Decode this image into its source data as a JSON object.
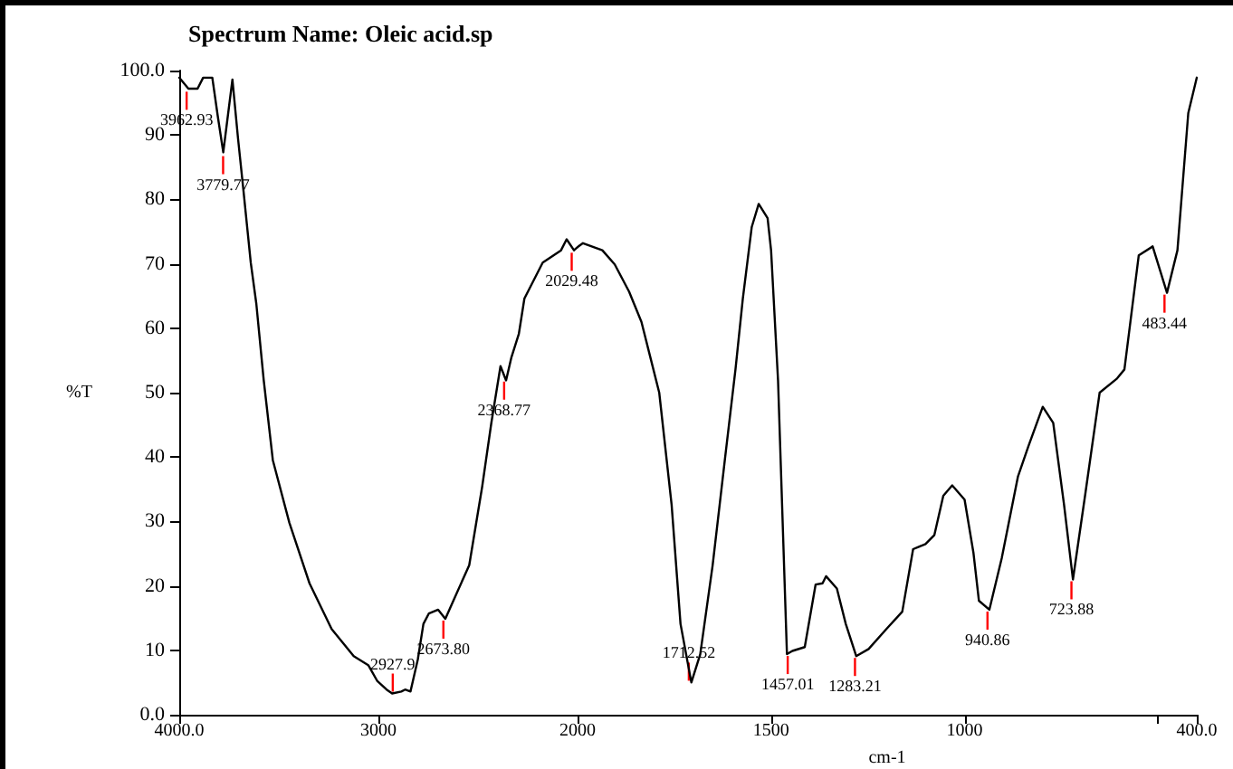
{
  "chart_data": [
    {
      "type": "line",
      "title": "Spectrum Name: Oleic acid.sp",
      "ylabel": "%T",
      "color": "#000000",
      "grid": false,
      "marker": "none",
      "line_style": "solid",
      "xlim": [
        4000,
        2000
      ],
      "xticks": [
        {
          "value": 4000,
          "label": "4000.0"
        },
        3000,
        2000
      ],
      "ylim": [
        0,
        100
      ],
      "yticks": [
        {
          "value": 0,
          "label": "0.0"
        },
        10,
        20,
        30,
        40,
        50,
        60,
        70,
        80,
        90,
        {
          "value": 100,
          "label": "100.0"
        }
      ],
      "x": [
        4000,
        3954,
        3908,
        3880,
        3834,
        3806,
        3779,
        3733,
        3705,
        3677,
        3641,
        3613,
        3576,
        3530,
        3447,
        3346,
        3235,
        3124,
        3051,
        3005,
        2959,
        2931,
        2885,
        2866,
        2839,
        2802,
        2774,
        2747,
        2700,
        2664,
        2608,
        2544,
        2479,
        2433,
        2387,
        2359,
        2332,
        2295,
        2267,
        2175,
        2083,
        2055,
        2018,
        2000
      ],
      "values": [
        98.9,
        97.2,
        97.2,
        98.9,
        98.9,
        92.8,
        87.3,
        98.6,
        89.5,
        81.2,
        70.2,
        63.8,
        52,
        39.5,
        29.8,
        20.4,
        13.3,
        9.1,
        7.7,
        5.2,
        3.9,
        3.3,
        3.6,
        3.9,
        3.6,
        8.6,
        14.1,
        15.7,
        16.3,
        14.9,
        18.8,
        23.2,
        35.4,
        45.3,
        54.1,
        51.9,
        55.5,
        59.1,
        64.6,
        70.2,
        72.1,
        73.8,
        72.1,
        72.6
      ],
      "annotations": [
        {
          "text": "3962.93",
          "x": 3962.93,
          "y": 97
        },
        {
          "text": "3779.77",
          "x": 3779.77,
          "y": 87
        },
        {
          "text": "2927.9",
          "x": 2927.9,
          "y": 3.3
        },
        {
          "text": "2673.80",
          "x": 2673.8,
          "y": 14.9
        },
        {
          "text": "2368.77",
          "x": 2368.77,
          "y": 52
        },
        {
          "text": "2029.48",
          "x": 2029.48,
          "y": 72
        }
      ]
    },
    {
      "type": "line",
      "xlabel": "cm-1",
      "color": "#000000",
      "grid": false,
      "marker": "none",
      "line_style": "solid",
      "tick_labels": "x",
      "xlim": [
        2000,
        400
      ],
      "xticks": [
        {
          "value": 2000,
          "label": null
        },
        1500,
        1000,
        {
          "value": 500,
          "label": null
        },
        {
          "value": 400,
          "label": "400.0"
        }
      ],
      "ylim": [
        0,
        100
      ],
      "x": [
        2000,
        1986,
        1936,
        1904,
        1867,
        1835,
        1812,
        1789,
        1757,
        1734,
        1706,
        1683,
        1651,
        1619,
        1592,
        1573,
        1550,
        1532,
        1509,
        1500,
        1482,
        1459,
        1445,
        1413,
        1385,
        1367,
        1358,
        1330,
        1307,
        1280,
        1248,
        1202,
        1161,
        1133,
        1101,
        1078,
        1055,
        1032,
        1000,
        977,
        963,
        936,
        904,
        862,
        835,
        798,
        771,
        743,
        720,
        688,
        651,
        606,
        587,
        550,
        514,
        477,
        450,
        422,
        400
      ],
      "values": [
        72.6,
        73.2,
        72.1,
        69.9,
        65.7,
        61,
        55.5,
        50,
        32.6,
        14.1,
        5,
        9.4,
        23.2,
        39.8,
        53.6,
        64.6,
        75.7,
        79.3,
        77.1,
        72.1,
        51.9,
        9.4,
        9.9,
        10.5,
        20.2,
        20.4,
        21.5,
        19.6,
        14.1,
        9.1,
        10.2,
        13.3,
        16,
        25.7,
        26.5,
        27.9,
        34,
        35.6,
        33.4,
        25.1,
        17.7,
        16.3,
        24.3,
        37,
        41.7,
        47.8,
        45.3,
        32.6,
        21,
        34.3,
        50,
        52.2,
        53.6,
        71.3,
        72.7,
        65.5,
        72.1,
        93.4,
        98.9
      ],
      "annotations": [
        {
          "text": "1712.52",
          "x": 1712.52,
          "y": 5
        },
        {
          "text": "1457.01",
          "x": 1457.01,
          "y": 9.4
        },
        {
          "text": "1283.21",
          "x": 1283.21,
          "y": 9.1
        },
        {
          "text": "940.86",
          "x": 940.86,
          "y": 16.3
        },
        {
          "text": "723.88",
          "x": 723.88,
          "y": 21
        },
        {
          "text": "483.44",
          "x": 483.44,
          "y": 65.5
        }
      ]
    }
  ]
}
